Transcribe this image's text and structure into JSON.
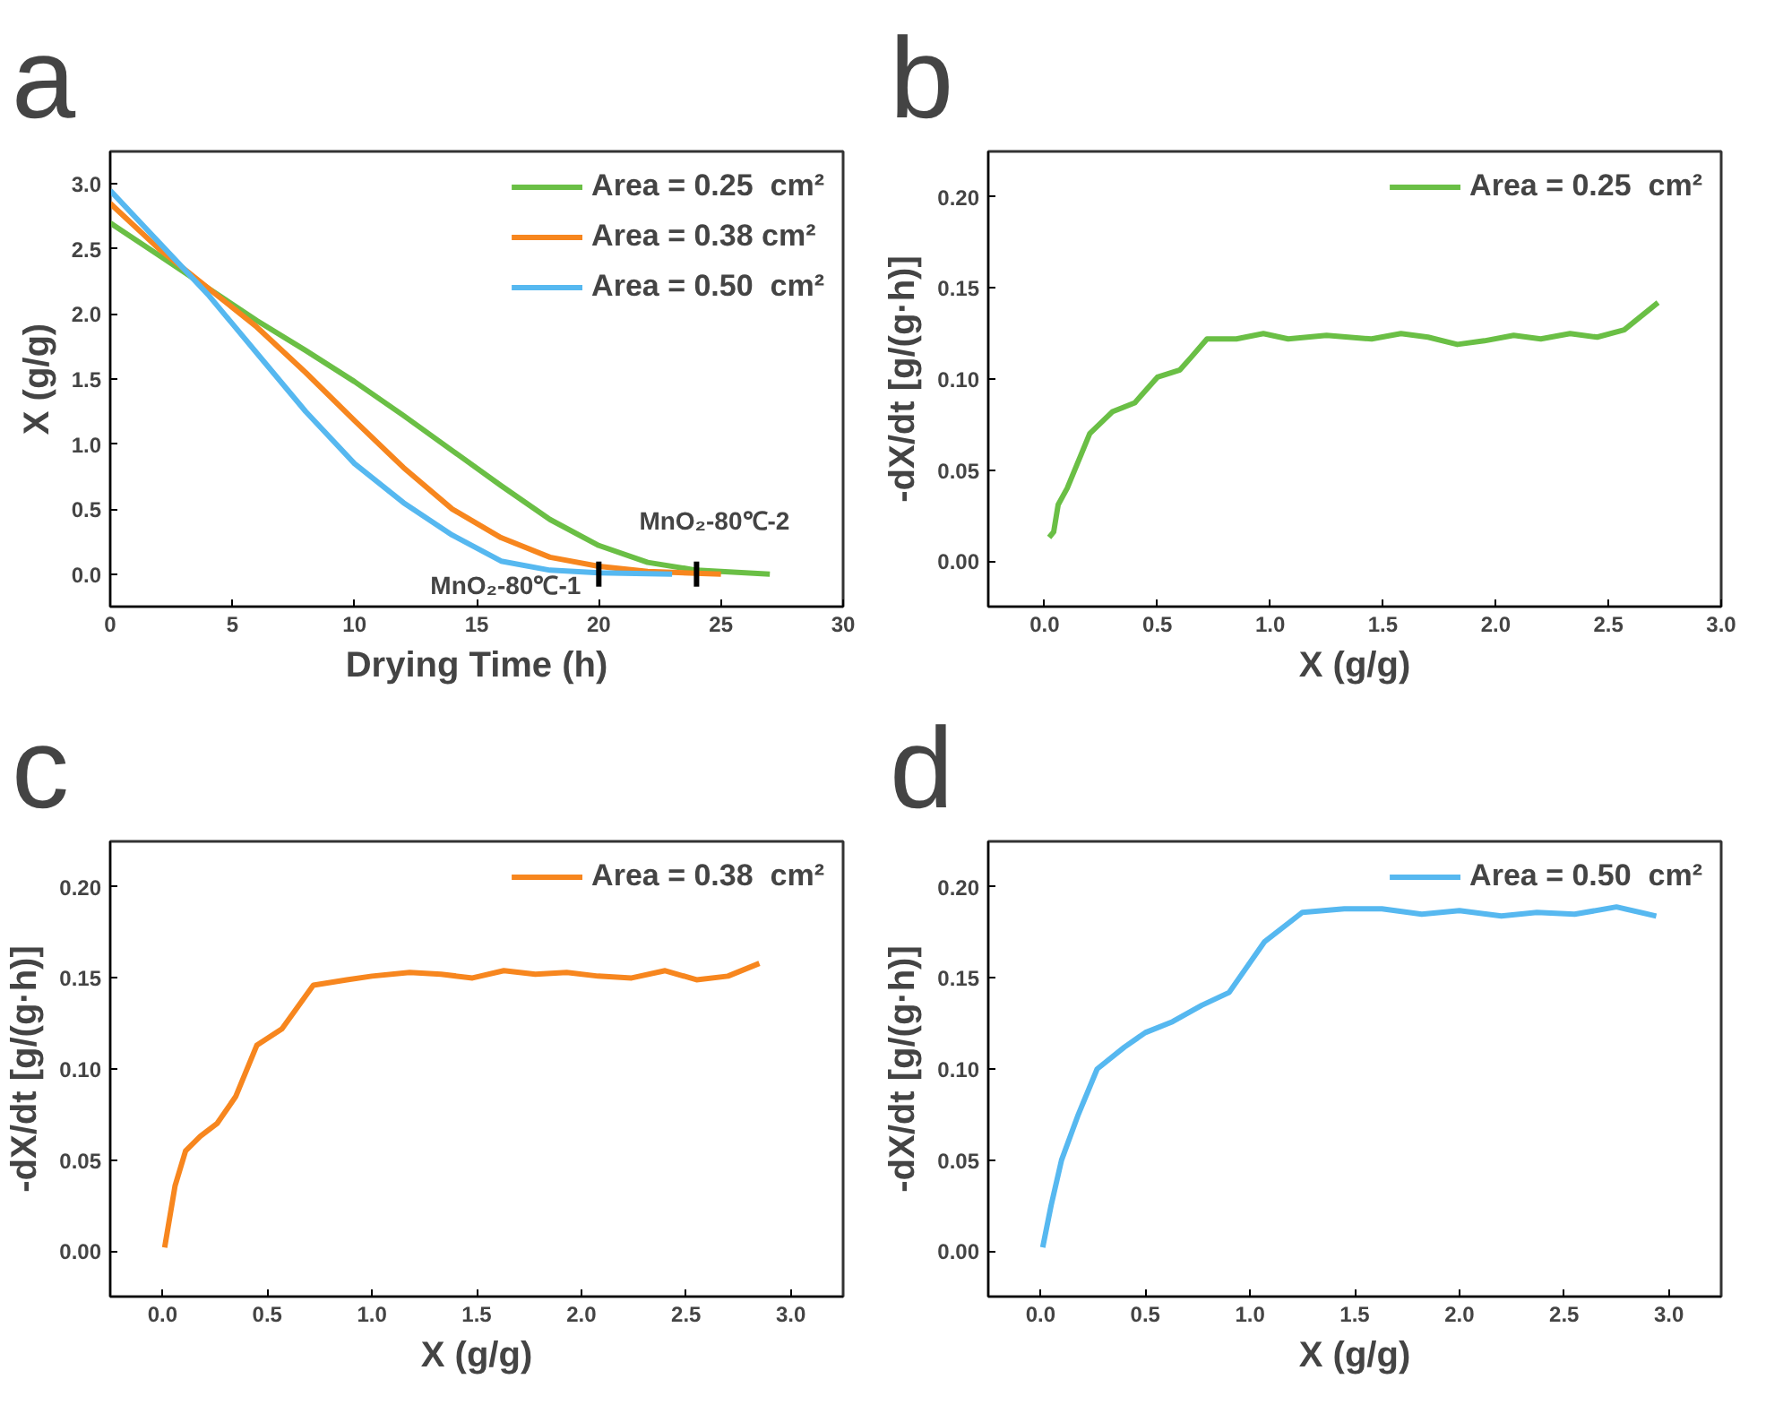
{
  "chart_data": [
    {
      "type": "line",
      "title": "a",
      "xlabel": "Drying Time (h)",
      "ylabel": "X (g/g)",
      "xlim": [
        0,
        30
      ],
      "ylim": [
        -0.25,
        3.25
      ],
      "xticks": [
        0,
        5,
        10,
        15,
        20,
        25,
        30
      ],
      "yticks": [
        {
          "value": 0,
          "label": "0.0"
        },
        {
          "value": 0.5,
          "label": "0.5"
        },
        {
          "value": 1,
          "label": "1.0"
        },
        {
          "value": 1.5,
          "label": "1.5"
        },
        {
          "value": 2,
          "label": "2.0"
        },
        {
          "value": 2.5,
          "label": "2.5"
        },
        {
          "value": 3,
          "label": "3.0"
        }
      ],
      "legend": "top right",
      "grid": false,
      "series": [
        {
          "name": "Area = 0.25  cm²",
          "color": "#6abf45",
          "x": [
            0,
            2,
            4,
            6,
            8,
            10,
            12,
            14,
            16,
            18,
            20,
            22,
            24,
            27
          ],
          "values": [
            2.7,
            2.45,
            2.2,
            1.95,
            1.72,
            1.48,
            1.22,
            0.95,
            0.68,
            0.42,
            0.22,
            0.09,
            0.03,
            0.0
          ]
        },
        {
          "name": "Area = 0.38 cm²",
          "color": "#f7861e",
          "x": [
            0,
            2,
            4,
            6,
            8,
            10,
            12,
            14,
            16,
            18,
            20,
            22,
            25
          ],
          "values": [
            2.85,
            2.5,
            2.2,
            1.9,
            1.55,
            1.18,
            0.82,
            0.5,
            0.28,
            0.13,
            0.06,
            0.02,
            0.0
          ]
        },
        {
          "name": "Area = 0.50  cm²",
          "color": "#56b8f0",
          "x": [
            0,
            2,
            4,
            6,
            8,
            10,
            12,
            14,
            16,
            18,
            20,
            23
          ],
          "values": [
            2.95,
            2.55,
            2.15,
            1.7,
            1.25,
            0.85,
            0.55,
            0.3,
            0.1,
            0.03,
            0.01,
            0.0
          ]
        }
      ],
      "annotations": [
        {
          "text": "MnO₂-80℃-1",
          "x": 20,
          "y": 0
        },
        {
          "text": "MnO₂-80℃-2",
          "x": 24,
          "y": 0
        }
      ]
    },
    {
      "type": "line",
      "title": "b",
      "xlabel": "X (g/g)",
      "ylabel": "-dX/dt [g/(g·h)]",
      "xlim": [
        -0.25,
        3.0
      ],
      "ylim": [
        -0.025,
        0.225
      ],
      "xticks": [
        {
          "value": 0,
          "label": "0.0"
        },
        {
          "value": 0.5,
          "label": "0.5"
        },
        {
          "value": 1,
          "label": "1.0"
        },
        {
          "value": 1.5,
          "label": "1.5"
        },
        {
          "value": 2,
          "label": "2.0"
        },
        {
          "value": 2.5,
          "label": "2.5"
        },
        {
          "value": 3,
          "label": "3.0"
        }
      ],
      "yticks": [
        {
          "value": 0,
          "label": "0.00"
        },
        {
          "value": 0.05,
          "label": "0.05"
        },
        {
          "value": 0.1,
          "label": "0.10"
        },
        {
          "value": 0.15,
          "label": "0.15"
        },
        {
          "value": 0.2,
          "label": "0.20"
        }
      ],
      "legend": "top right",
      "grid": false,
      "series": [
        {
          "name": "Area = 0.25  cm²",
          "color": "#6abf45",
          "x": [
            0.02,
            0.04,
            0.06,
            0.1,
            0.15,
            0.2,
            0.3,
            0.4,
            0.5,
            0.6,
            0.65,
            0.72,
            0.85,
            0.97,
            1.08,
            1.25,
            1.45,
            1.58,
            1.7,
            1.83,
            1.95,
            2.08,
            2.2,
            2.33,
            2.45,
            2.57,
            2.72
          ],
          "values": [
            0.013,
            0.016,
            0.031,
            0.04,
            0.055,
            0.07,
            0.082,
            0.087,
            0.101,
            0.105,
            0.112,
            0.122,
            0.122,
            0.125,
            0.122,
            0.124,
            0.122,
            0.125,
            0.123,
            0.119,
            0.121,
            0.124,
            0.122,
            0.125,
            0.123,
            0.127,
            0.142
          ]
        }
      ]
    },
    {
      "type": "line",
      "title": "c",
      "xlabel": "X (g/g)",
      "ylabel": "-dX/dt [g/(g·h)]",
      "xlim": [
        -0.25,
        3.25
      ],
      "ylim": [
        -0.025,
        0.225
      ],
      "xticks": [
        {
          "value": 0,
          "label": "0.0"
        },
        {
          "value": 0.5,
          "label": "0.5"
        },
        {
          "value": 1,
          "label": "1.0"
        },
        {
          "value": 1.5,
          "label": "1.5"
        },
        {
          "value": 2,
          "label": "2.0"
        },
        {
          "value": 2.5,
          "label": "2.5"
        },
        {
          "value": 3,
          "label": "3.0"
        }
      ],
      "yticks": [
        {
          "value": 0,
          "label": "0.00"
        },
        {
          "value": 0.05,
          "label": "0.05"
        },
        {
          "value": 0.1,
          "label": "0.10"
        },
        {
          "value": 0.15,
          "label": "0.15"
        },
        {
          "value": 0.2,
          "label": "0.20"
        }
      ],
      "legend": "top right",
      "grid": false,
      "series": [
        {
          "name": "Area = 0.38  cm²",
          "color": "#f7861e",
          "x": [
            0.01,
            0.06,
            0.11,
            0.18,
            0.26,
            0.35,
            0.45,
            0.57,
            0.72,
            0.88,
            1.0,
            1.18,
            1.33,
            1.48,
            1.63,
            1.78,
            1.93,
            2.08,
            2.24,
            2.4,
            2.55,
            2.7,
            2.85
          ],
          "values": [
            0.002,
            0.036,
            0.055,
            0.063,
            0.07,
            0.085,
            0.113,
            0.122,
            0.146,
            0.149,
            0.151,
            0.153,
            0.152,
            0.15,
            0.154,
            0.152,
            0.153,
            0.151,
            0.15,
            0.154,
            0.149,
            0.151,
            0.158
          ]
        }
      ]
    },
    {
      "type": "line",
      "title": "d",
      "xlabel": "X (g/g)",
      "ylabel": "-dX/dt [g/(g·h)]",
      "xlim": [
        -0.25,
        3.25
      ],
      "ylim": [
        -0.025,
        0.225
      ],
      "xticks": [
        {
          "value": 0,
          "label": "0.0"
        },
        {
          "value": 0.5,
          "label": "0.5"
        },
        {
          "value": 1,
          "label": "1.0"
        },
        {
          "value": 1.5,
          "label": "1.5"
        },
        {
          "value": 2,
          "label": "2.0"
        },
        {
          "value": 2.5,
          "label": "2.5"
        },
        {
          "value": 3,
          "label": "3.0"
        }
      ],
      "yticks": [
        {
          "value": 0,
          "label": "0.00"
        },
        {
          "value": 0.05,
          "label": "0.05"
        },
        {
          "value": 0.1,
          "label": "0.10"
        },
        {
          "value": 0.15,
          "label": "0.15"
        },
        {
          "value": 0.2,
          "label": "0.20"
        }
      ],
      "legend": "top right",
      "grid": false,
      "series": [
        {
          "name": "Area = 0.50  cm²",
          "color": "#56b8f0",
          "x": [
            0.01,
            0.05,
            0.1,
            0.18,
            0.27,
            0.4,
            0.5,
            0.63,
            0.77,
            0.9,
            1.07,
            1.25,
            1.45,
            1.63,
            1.82,
            2.0,
            2.2,
            2.37,
            2.55,
            2.75,
            2.94
          ],
          "values": [
            0.002,
            0.025,
            0.05,
            0.075,
            0.1,
            0.112,
            0.12,
            0.126,
            0.135,
            0.142,
            0.17,
            0.186,
            0.188,
            0.188,
            0.185,
            0.187,
            0.184,
            0.186,
            0.185,
            0.189,
            0.184
          ]
        }
      ]
    }
  ]
}
